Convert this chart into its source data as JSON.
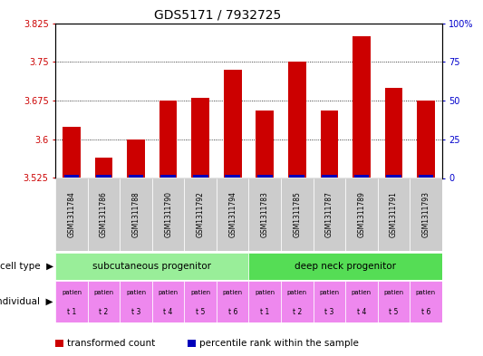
{
  "title": "GDS5171 / 7932725",
  "samples": [
    "GSM1311784",
    "GSM1311786",
    "GSM1311788",
    "GSM1311790",
    "GSM1311792",
    "GSM1311794",
    "GSM1311783",
    "GSM1311785",
    "GSM1311787",
    "GSM1311789",
    "GSM1311791",
    "GSM1311793"
  ],
  "transformed_counts": [
    3.625,
    3.565,
    3.6,
    3.675,
    3.68,
    3.735,
    3.655,
    3.75,
    3.655,
    3.8,
    3.7,
    3.675
  ],
  "ylim_left": [
    3.525,
    3.825
  ],
  "ylim_right": [
    0,
    100
  ],
  "yticks_left": [
    3.525,
    3.6,
    3.675,
    3.75,
    3.825
  ],
  "yticks_right": [
    0,
    25,
    50,
    75,
    100
  ],
  "ytick_labels_left": [
    "3.525",
    "3.6",
    "3.675",
    "3.75",
    "3.825"
  ],
  "ytick_labels_right": [
    "0",
    "25",
    "50",
    "75",
    "100%"
  ],
  "bar_baseline": 3.525,
  "bar_color": "#cc0000",
  "percentile_color": "#0000bb",
  "cell_type_groups": [
    {
      "label": "subcutaneous progenitor",
      "start": 0,
      "end": 6,
      "color": "#99ee99"
    },
    {
      "label": "deep neck progenitor",
      "start": 6,
      "end": 12,
      "color": "#55dd55"
    }
  ],
  "individual_labels_top": [
    "patien",
    "patien",
    "patien",
    "patien",
    "patien",
    "patien",
    "patien",
    "patien",
    "patien",
    "patien",
    "patien",
    "patien"
  ],
  "individual_labels_bot": [
    "t 1",
    "t 2",
    "t 3",
    "t 4",
    "t 5",
    "t 6",
    "t 1",
    "t 2",
    "t 3",
    "t 4",
    "t 5",
    "t 6"
  ],
  "individual_color": "#ee88ee",
  "legend_items": [
    {
      "color": "#cc0000",
      "label": "transformed count"
    },
    {
      "color": "#0000bb",
      "label": "percentile rank within the sample"
    }
  ],
  "axis_label_color_left": "#cc0000",
  "axis_label_color_right": "#0000cc",
  "sample_bg_color": "#cccccc",
  "bar_width": 0.55,
  "title_fontsize": 10,
  "tick_fontsize": 7,
  "sample_fontsize": 5.5,
  "legend_fontsize": 7.5
}
